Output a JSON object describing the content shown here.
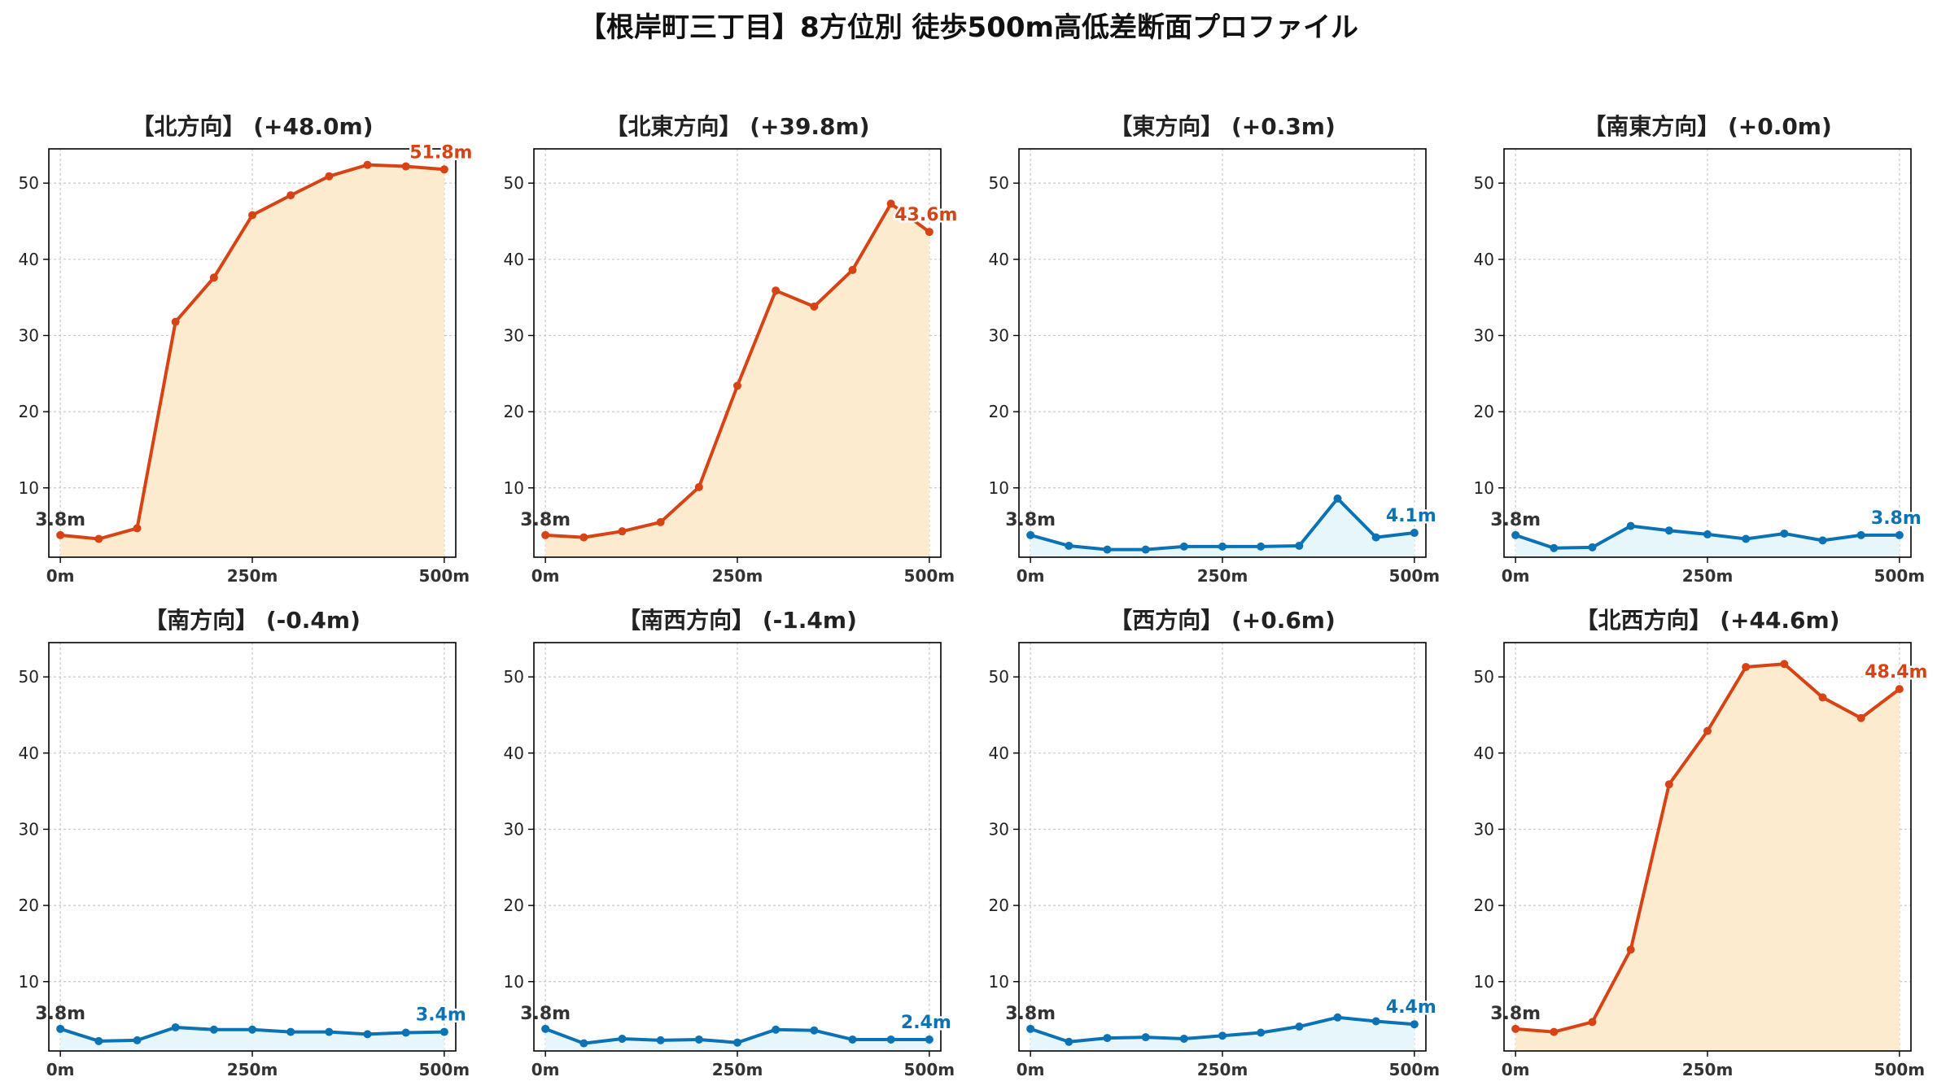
{
  "title": "【根岸町三丁目】8方位別 徒歩500m高低差断面プロファイル",
  "colors": {
    "up_line": "#d84315",
    "up_fill": "#fdebd0",
    "flat_line": "#0a72b5",
    "flat_fill": "#e6f6fb",
    "start_label": "#333333"
  },
  "chart_data": [
    {
      "type": "area",
      "title": "【北方向】 (+48.0m)",
      "trend": "up",
      "x": [
        0,
        50,
        100,
        150,
        200,
        250,
        300,
        350,
        400,
        450,
        500
      ],
      "values": [
        3.8,
        3.3,
        4.7,
        31.8,
        37.6,
        45.8,
        48.4,
        50.9,
        52.4,
        52.2,
        51.8
      ],
      "start_label": "3.8m",
      "end_label": "51.8m",
      "xticks": [
        "0m",
        "250m",
        "500m"
      ],
      "yticks": [
        "10",
        "20",
        "30",
        "40",
        "50"
      ],
      "xlim": [
        -15,
        515
      ],
      "ylim": [
        0.9,
        54.5
      ],
      "grid": true
    },
    {
      "type": "area",
      "title": "【北東方向】 (+39.8m)",
      "trend": "up",
      "x": [
        0,
        50,
        100,
        150,
        200,
        250,
        300,
        350,
        400,
        450,
        500
      ],
      "values": [
        3.8,
        3.5,
        4.3,
        5.5,
        10.1,
        23.4,
        35.9,
        33.8,
        38.6,
        47.3,
        43.6
      ],
      "start_label": "3.8m",
      "end_label": "43.6m",
      "xticks": [
        "0m",
        "250m",
        "500m"
      ],
      "yticks": [
        "10",
        "20",
        "30",
        "40",
        "50"
      ],
      "xlim": [
        -15,
        515
      ],
      "ylim": [
        0.9,
        54.5
      ],
      "grid": true
    },
    {
      "type": "area",
      "title": "【東方向】 (+0.3m)",
      "trend": "flat",
      "x": [
        0,
        50,
        100,
        150,
        200,
        250,
        300,
        350,
        400,
        450,
        500
      ],
      "values": [
        3.8,
        2.4,
        1.9,
        1.9,
        2.3,
        2.3,
        2.3,
        2.4,
        8.6,
        3.5,
        4.1
      ],
      "start_label": "3.8m",
      "end_label": "4.1m",
      "xticks": [
        "0m",
        "250m",
        "500m"
      ],
      "yticks": [
        "10",
        "20",
        "30",
        "40",
        "50"
      ],
      "xlim": [
        -15,
        515
      ],
      "ylim": [
        0.9,
        54.5
      ],
      "grid": true
    },
    {
      "type": "area",
      "title": "【南東方向】 (+0.0m)",
      "trend": "flat",
      "x": [
        0,
        50,
        100,
        150,
        200,
        250,
        300,
        350,
        400,
        450,
        500
      ],
      "values": [
        3.8,
        2.1,
        2.2,
        5.0,
        4.4,
        3.9,
        3.3,
        4.0,
        3.1,
        3.8,
        3.8
      ],
      "start_label": "3.8m",
      "end_label": "3.8m",
      "xticks": [
        "0m",
        "250m",
        "500m"
      ],
      "yticks": [
        "10",
        "20",
        "30",
        "40",
        "50"
      ],
      "xlim": [
        -15,
        515
      ],
      "ylim": [
        0.9,
        54.5
      ],
      "grid": true
    },
    {
      "type": "area",
      "title": "【南方向】 (-0.4m)",
      "trend": "flat",
      "x": [
        0,
        50,
        100,
        150,
        200,
        250,
        300,
        350,
        400,
        450,
        500
      ],
      "values": [
        3.8,
        2.2,
        2.3,
        4.0,
        3.7,
        3.7,
        3.4,
        3.4,
        3.1,
        3.3,
        3.4
      ],
      "start_label": "3.8m",
      "end_label": "3.4m",
      "xticks": [
        "0m",
        "250m",
        "500m"
      ],
      "yticks": [
        "10",
        "20",
        "30",
        "40",
        "50"
      ],
      "xlim": [
        -15,
        515
      ],
      "ylim": [
        0.9,
        54.5
      ],
      "grid": true
    },
    {
      "type": "area",
      "title": "【南西方向】 (-1.4m)",
      "trend": "flat",
      "x": [
        0,
        50,
        100,
        150,
        200,
        250,
        300,
        350,
        400,
        450,
        500
      ],
      "values": [
        3.8,
        1.9,
        2.5,
        2.3,
        2.4,
        2.0,
        3.7,
        3.6,
        2.4,
        2.4,
        2.4
      ],
      "start_label": "3.8m",
      "end_label": "2.4m",
      "xticks": [
        "0m",
        "250m",
        "500m"
      ],
      "yticks": [
        "10",
        "20",
        "30",
        "40",
        "50"
      ],
      "xlim": [
        -15,
        515
      ],
      "ylim": [
        0.9,
        54.5
      ],
      "grid": true
    },
    {
      "type": "area",
      "title": "【西方向】 (+0.6m)",
      "trend": "flat",
      "x": [
        0,
        50,
        100,
        150,
        200,
        250,
        300,
        350,
        400,
        450,
        500
      ],
      "values": [
        3.8,
        2.1,
        2.6,
        2.7,
        2.5,
        2.9,
        3.3,
        4.1,
        5.3,
        4.8,
        4.4
      ],
      "start_label": "3.8m",
      "end_label": "4.4m",
      "xticks": [
        "0m",
        "250m",
        "500m"
      ],
      "yticks": [
        "10",
        "20",
        "30",
        "40",
        "50"
      ],
      "xlim": [
        -15,
        515
      ],
      "ylim": [
        0.9,
        54.5
      ],
      "grid": true
    },
    {
      "type": "area",
      "title": "【北西方向】 (+44.6m)",
      "trend": "up",
      "x": [
        0,
        50,
        100,
        150,
        200,
        250,
        300,
        350,
        400,
        450,
        500
      ],
      "values": [
        3.8,
        3.4,
        4.7,
        14.2,
        35.9,
        42.9,
        51.3,
        51.7,
        47.3,
        44.6,
        48.4
      ],
      "start_label": "3.8m",
      "end_label": "48.4m",
      "xticks": [
        "0m",
        "250m",
        "500m"
      ],
      "yticks": [
        "10",
        "20",
        "30",
        "40",
        "50"
      ],
      "xlim": [
        -15,
        515
      ],
      "ylim": [
        0.9,
        54.5
      ],
      "grid": true
    }
  ]
}
